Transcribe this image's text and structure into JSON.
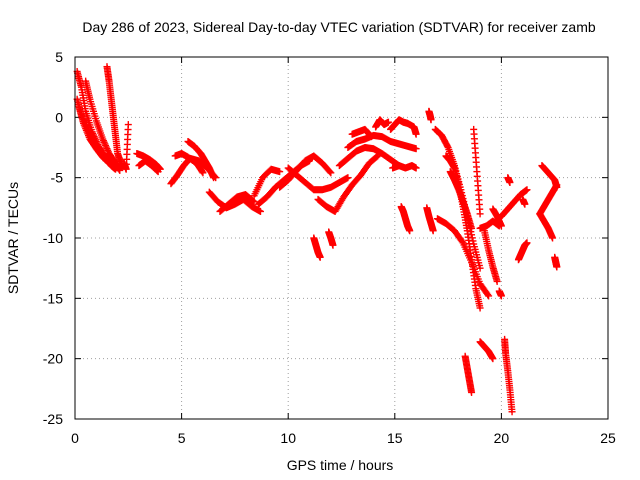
{
  "chart_data": {
    "type": "scatter",
    "title": "Day 286 of 2023, Sidereal Day-to-day VTEC variation (SDTVAR) for receiver zamb",
    "xlabel": "GPS time / hours",
    "ylabel": "SDTVAR / TECUs",
    "xlim": [
      0,
      25
    ],
    "ylim": [
      -25,
      5
    ],
    "xticks": [
      0,
      5,
      10,
      15,
      20,
      25
    ],
    "yticks": [
      5,
      0,
      -5,
      -10,
      -15,
      -20,
      -25
    ],
    "grid": true,
    "marker": "plus",
    "marker_color": "#ff0000",
    "series": [
      {
        "name": "SDTVAR",
        "color": "#ff0000",
        "segments": [
          {
            "x": [
              0.1,
              0.3,
              0.5,
              0.8,
              1.1,
              1.4,
              1.7,
              1.9
            ],
            "y": [
              3.8,
              2.5,
              0.5,
              -1.2,
              -2.4,
              -3.3,
              -4.0,
              -4.3
            ]
          },
          {
            "x": [
              0.1,
              0.3,
              0.6,
              0.9,
              1.2,
              1.5,
              1.8,
              2.0
            ],
            "y": [
              1.5,
              0.2,
              -1.0,
              -2.0,
              -2.8,
              -3.5,
              -4.0,
              -4.2
            ]
          },
          {
            "x": [
              0.2,
              0.4,
              0.7,
              1.0,
              1.3,
              1.6,
              1.9
            ],
            "y": [
              0.8,
              -0.5,
              -1.8,
              -2.6,
              -3.3,
              -3.8,
              -4.2
            ]
          },
          {
            "x": [
              0.5,
              0.7,
              1.0,
              1.3,
              1.6,
              1.9,
              2.1
            ],
            "y": [
              3.0,
              1.5,
              -0.3,
              -1.8,
              -3.0,
              -3.8,
              -4.4
            ]
          },
          {
            "x": [
              1.5,
              1.6,
              1.7,
              1.8,
              1.9,
              2.0,
              2.2
            ],
            "y": [
              4.2,
              3.0,
              1.5,
              0.0,
              -1.5,
              -3.0,
              -4.0
            ]
          },
          {
            "x": [
              2.3,
              2.4,
              2.5
            ],
            "y": [
              -3.8,
              -4.3,
              -0.6
            ]
          },
          {
            "x": [
              2.9,
              3.2,
              3.5,
              3.8,
              4.0
            ],
            "y": [
              -3.0,
              -3.2,
              -3.5,
              -3.9,
              -4.3
            ]
          },
          {
            "x": [
              3.0,
              3.3,
              3.6,
              3.9
            ],
            "y": [
              -4.0,
              -3.6,
              -4.0,
              -4.5
            ]
          },
          {
            "x": [
              4.5,
              4.8,
              5.1,
              5.4,
              5.8,
              6.2,
              6.6
            ],
            "y": [
              -5.5,
              -4.8,
              -4.0,
              -3.4,
              -3.6,
              -4.2,
              -5.0
            ]
          },
          {
            "x": [
              5.3,
              5.6,
              5.9,
              6.1,
              6.3,
              6.5
            ],
            "y": [
              -2.0,
              -2.4,
              -3.0,
              -3.6,
              -4.2,
              -5.0
            ]
          },
          {
            "x": [
              4.7,
              5.0,
              5.3,
              5.7,
              6.0
            ],
            "y": [
              -3.2,
              -3.0,
              -3.3,
              -3.8,
              -4.6
            ]
          },
          {
            "x": [
              6.3,
              6.7,
              7.1,
              7.5,
              7.9,
              8.3,
              8.7
            ],
            "y": [
              -6.2,
              -7.0,
              -7.5,
              -7.2,
              -6.8,
              -7.4,
              -7.8
            ]
          },
          {
            "x": [
              6.8,
              7.2,
              7.6,
              8.0,
              8.4
            ],
            "y": [
              -7.8,
              -7.2,
              -6.6,
              -6.4,
              -7.0
            ]
          },
          {
            "x": [
              8.6,
              9.0,
              9.4,
              9.8,
              10.2,
              10.6,
              11.0
            ],
            "y": [
              -7.2,
              -6.6,
              -5.8,
              -5.2,
              -4.6,
              -4.0,
              -3.6
            ]
          },
          {
            "x": [
              8.4,
              8.8,
              9.2,
              9.6
            ],
            "y": [
              -6.5,
              -5.0,
              -4.3,
              -4.5
            ]
          },
          {
            "x": [
              9.6,
              10.0,
              10.4,
              10.8,
              11.2,
              11.6,
              12.0
            ],
            "y": [
              -5.8,
              -5.2,
              -4.4,
              -3.6,
              -3.2,
              -3.8,
              -4.6
            ]
          },
          {
            "x": [
              10.0,
              10.4,
              10.8,
              11.2,
              11.6,
              12.0,
              12.4,
              12.8
            ],
            "y": [
              -4.2,
              -4.8,
              -5.4,
              -6.0,
              -6.0,
              -5.8,
              -5.4,
              -5.0
            ]
          },
          {
            "x": [
              11.2,
              11.3,
              11.4,
              11.5
            ],
            "y": [
              -10.0,
              -10.6,
              -11.2,
              -11.6
            ]
          },
          {
            "x": [
              11.9,
              12.0,
              12.1
            ],
            "y": [
              -9.5,
              -10.0,
              -10.6
            ]
          },
          {
            "x": [
              11.4,
              11.8,
              12.2,
              12.6,
              13.0,
              13.4,
              13.8,
              14.2
            ],
            "y": [
              -6.8,
              -7.4,
              -7.8,
              -6.6,
              -5.6,
              -4.8,
              -3.8,
              -3.2
            ]
          },
          {
            "x": [
              12.4,
              12.8,
              13.2,
              13.6,
              14.0,
              14.4,
              14.8,
              15.2
            ],
            "y": [
              -4.0,
              -3.4,
              -2.8,
              -2.5,
              -2.6,
              -3.0,
              -3.5,
              -4.0
            ]
          },
          {
            "x": [
              12.8,
              13.2,
              13.6,
              14.0,
              14.4,
              14.8,
              15.2,
              15.6,
              16.0
            ],
            "y": [
              -2.5,
              -2.0,
              -1.8,
              -1.5,
              -1.6,
              -2.0,
              -2.2,
              -2.4,
              -2.6
            ]
          },
          {
            "x": [
              13.0,
              13.3,
              13.6,
              13.9
            ],
            "y": [
              -1.4,
              -1.2,
              -1.0,
              -1.6
            ]
          },
          {
            "x": [
              14.1,
              14.3,
              14.5,
              14.7
            ],
            "y": [
              -0.8,
              -0.2,
              -0.6,
              -0.4
            ]
          },
          {
            "x": [
              14.8,
              15.0,
              15.2,
              15.4,
              15.6,
              15.9,
              16.0
            ],
            "y": [
              -1.0,
              -0.6,
              -0.2,
              -0.4,
              -0.5,
              -0.8,
              -1.4
            ]
          },
          {
            "x": [
              14.9,
              15.2,
              15.5,
              15.8,
              16.0
            ],
            "y": [
              -4.2,
              -4.0,
              -4.2,
              -4.0,
              -4.2
            ]
          },
          {
            "x": [
              15.3,
              15.4,
              15.5,
              15.6,
              15.7
            ],
            "y": [
              -7.4,
              -7.8,
              -8.4,
              -9.0,
              -9.4
            ]
          },
          {
            "x": [
              16.6,
              16.65,
              16.7
            ],
            "y": [
              0.5,
              0.2,
              -0.2
            ]
          },
          {
            "x": [
              16.5,
              16.6,
              16.7,
              16.8
            ],
            "y": [
              -7.5,
              -8.2,
              -8.8,
              -9.4
            ]
          },
          {
            "x": [
              16.9,
              17.2,
              17.5,
              17.8,
              18.1,
              18.4,
              18.7,
              19.0
            ],
            "y": [
              -1.0,
              -1.5,
              -2.5,
              -4.0,
              -6.0,
              -8.2,
              -10.5,
              -12.5
            ]
          },
          {
            "x": [
              17.4,
              17.6,
              17.8,
              18.0,
              18.2,
              18.4,
              18.6,
              18.8,
              19.0
            ],
            "y": [
              -3.2,
              -3.6,
              -4.2,
              -5.6,
              -7.4,
              -9.4,
              -11.8,
              -14.2,
              -15.8
            ]
          },
          {
            "x": [
              17.6,
              17.8,
              18.0,
              18.2,
              18.4,
              18.6
            ],
            "y": [
              -4.5,
              -5.2,
              -6.0,
              -7.0,
              -8.0,
              -9.2
            ]
          },
          {
            "x": [
              17.0,
              17.4,
              17.8,
              18.2,
              18.6,
              19.0,
              19.4
            ],
            "y": [
              -8.4,
              -8.8,
              -9.4,
              -10.4,
              -12.0,
              -13.8,
              -14.8
            ]
          },
          {
            "x": [
              18.3,
              18.4,
              18.5,
              18.6
            ],
            "y": [
              -19.8,
              -20.8,
              -21.8,
              -22.8
            ]
          },
          {
            "x": [
              18.7,
              18.85,
              19.0
            ],
            "y": [
              -1.0,
              -4.5,
              -8.0
            ]
          },
          {
            "x": [
              19.0,
              19.2,
              19.4,
              19.6
            ],
            "y": [
              -18.6,
              -19.0,
              -19.4,
              -20.0
            ]
          },
          {
            "x": [
              19.2,
              19.4,
              19.6,
              19.8
            ],
            "y": [
              -9.4,
              -11.0,
              -12.4,
              -13.6
            ]
          },
          {
            "x": [
              19.0,
              19.3,
              19.6,
              19.9
            ],
            "y": [
              -9.2,
              -9.0,
              -8.6,
              -9.0
            ]
          },
          {
            "x": [
              19.6,
              19.8,
              20.0
            ],
            "y": [
              -7.6,
              -8.2,
              -9.0
            ]
          },
          {
            "x": [
              19.9,
              20.0
            ],
            "y": [
              -14.4,
              -14.8
            ]
          },
          {
            "x": [
              20.15,
              20.2,
              20.3,
              20.4,
              20.5
            ],
            "y": [
              -18.4,
              -19.6,
              -21.0,
              -22.6,
              -24.4
            ]
          },
          {
            "x": [
              20.0,
              20.3,
              20.6,
              20.9,
              21.2
            ],
            "y": [
              -8.2,
              -7.6,
              -7.0,
              -6.4,
              -6.0
            ]
          },
          {
            "x": [
              20.3,
              20.4
            ],
            "y": [
              -5.0,
              -5.4
            ]
          },
          {
            "x": [
              20.8,
              20.9,
              21.0,
              21.1,
              21.2
            ],
            "y": [
              -11.8,
              -11.4,
              -11.0,
              -10.6,
              -10.4
            ]
          },
          {
            "x": [
              21.0,
              21.1
            ],
            "y": [
              -6.8,
              -7.2
            ]
          },
          {
            "x": [
              21.8,
              22.0,
              22.2,
              22.4
            ],
            "y": [
              -8.0,
              -8.6,
              -9.2,
              -10.0
            ]
          },
          {
            "x": [
              21.9,
              22.1,
              22.3,
              22.5,
              22.6
            ],
            "y": [
              -4.0,
              -4.4,
              -4.8,
              -5.2,
              -5.8
            ]
          },
          {
            "x": [
              21.8,
              22.0,
              22.2,
              22.4,
              22.6
            ],
            "y": [
              -8.0,
              -7.4,
              -6.8,
              -6.2,
              -5.6
            ]
          },
          {
            "x": [
              22.5,
              22.55,
              22.6
            ],
            "y": [
              -11.6,
              -12.0,
              -12.4
            ]
          }
        ]
      }
    ]
  }
}
